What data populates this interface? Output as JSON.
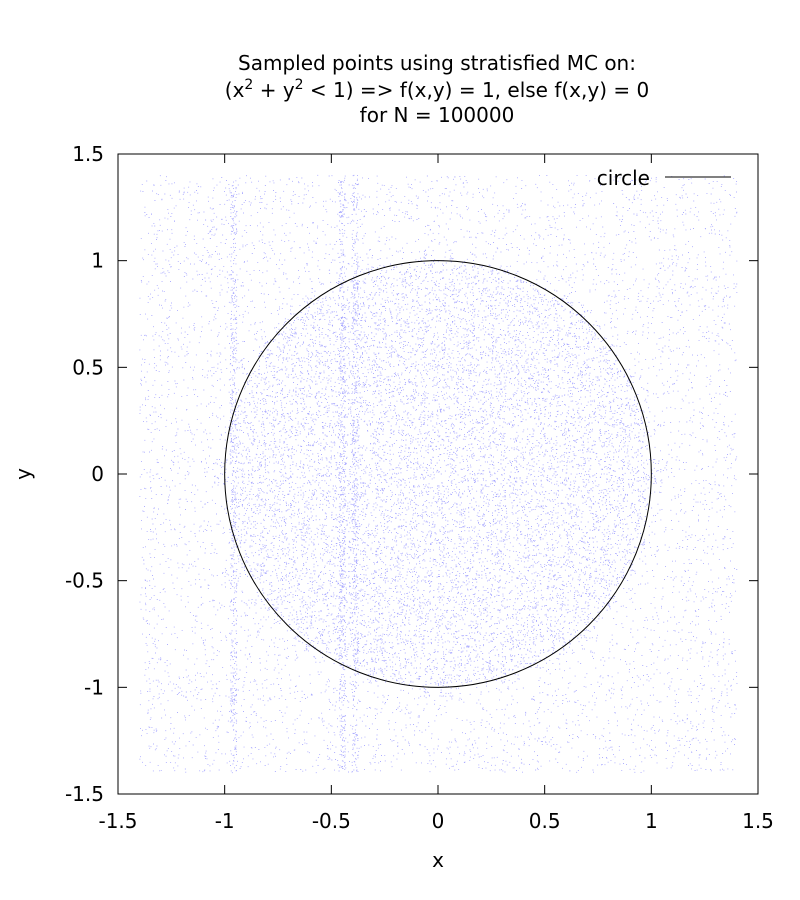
{
  "chart_data": {
    "type": "scatter",
    "title_lines": [
      "Sampled points using stratisfied MC on:",
      "(x{sup2} + y{sup2} < 1) => f(x,y) = 1, else f(x,y) = 0",
      "for N = 100000"
    ],
    "title_line1": "Sampled points using stratisfied MC on:",
    "title_line2_parts": [
      "(x",
      "2",
      " + y",
      "2",
      " < 1) => f(x,y) = 1, else f(x,y) = 0"
    ],
    "title_line3": "for N = 100000",
    "xlabel": "x",
    "ylabel": "y",
    "xlim": [
      -1.5,
      1.5
    ],
    "ylim": [
      -1.5,
      1.5
    ],
    "xticks": [
      -1.5,
      -1,
      -0.5,
      0,
      0.5,
      1,
      1.5
    ],
    "yticks": [
      -1.5,
      -1,
      -0.5,
      0,
      0.5,
      1,
      1.5
    ],
    "xtick_labels": [
      "-1.5",
      "-1",
      "-0.5",
      "0",
      "0.5",
      "1",
      "1.5"
    ],
    "ytick_labels": [
      "-1.5",
      "-1",
      "-0.5",
      "0",
      "0.5",
      "1",
      "1.5"
    ],
    "grid": false,
    "legend_position": "top-right",
    "series": [
      {
        "name": "circle",
        "kind": "curve",
        "equation": "x^2 + y^2 = 1",
        "radius": 1,
        "color": "#000000"
      },
      {
        "kind": "points",
        "count": 100000,
        "color": "#0000ff",
        "sample_region_x": [
          -1.4,
          1.4
        ],
        "sample_region_y": [
          -1.4,
          1.4
        ],
        "dense_region": "approximately the unit disk, slightly enlarged, blocky strata edges"
      }
    ]
  }
}
